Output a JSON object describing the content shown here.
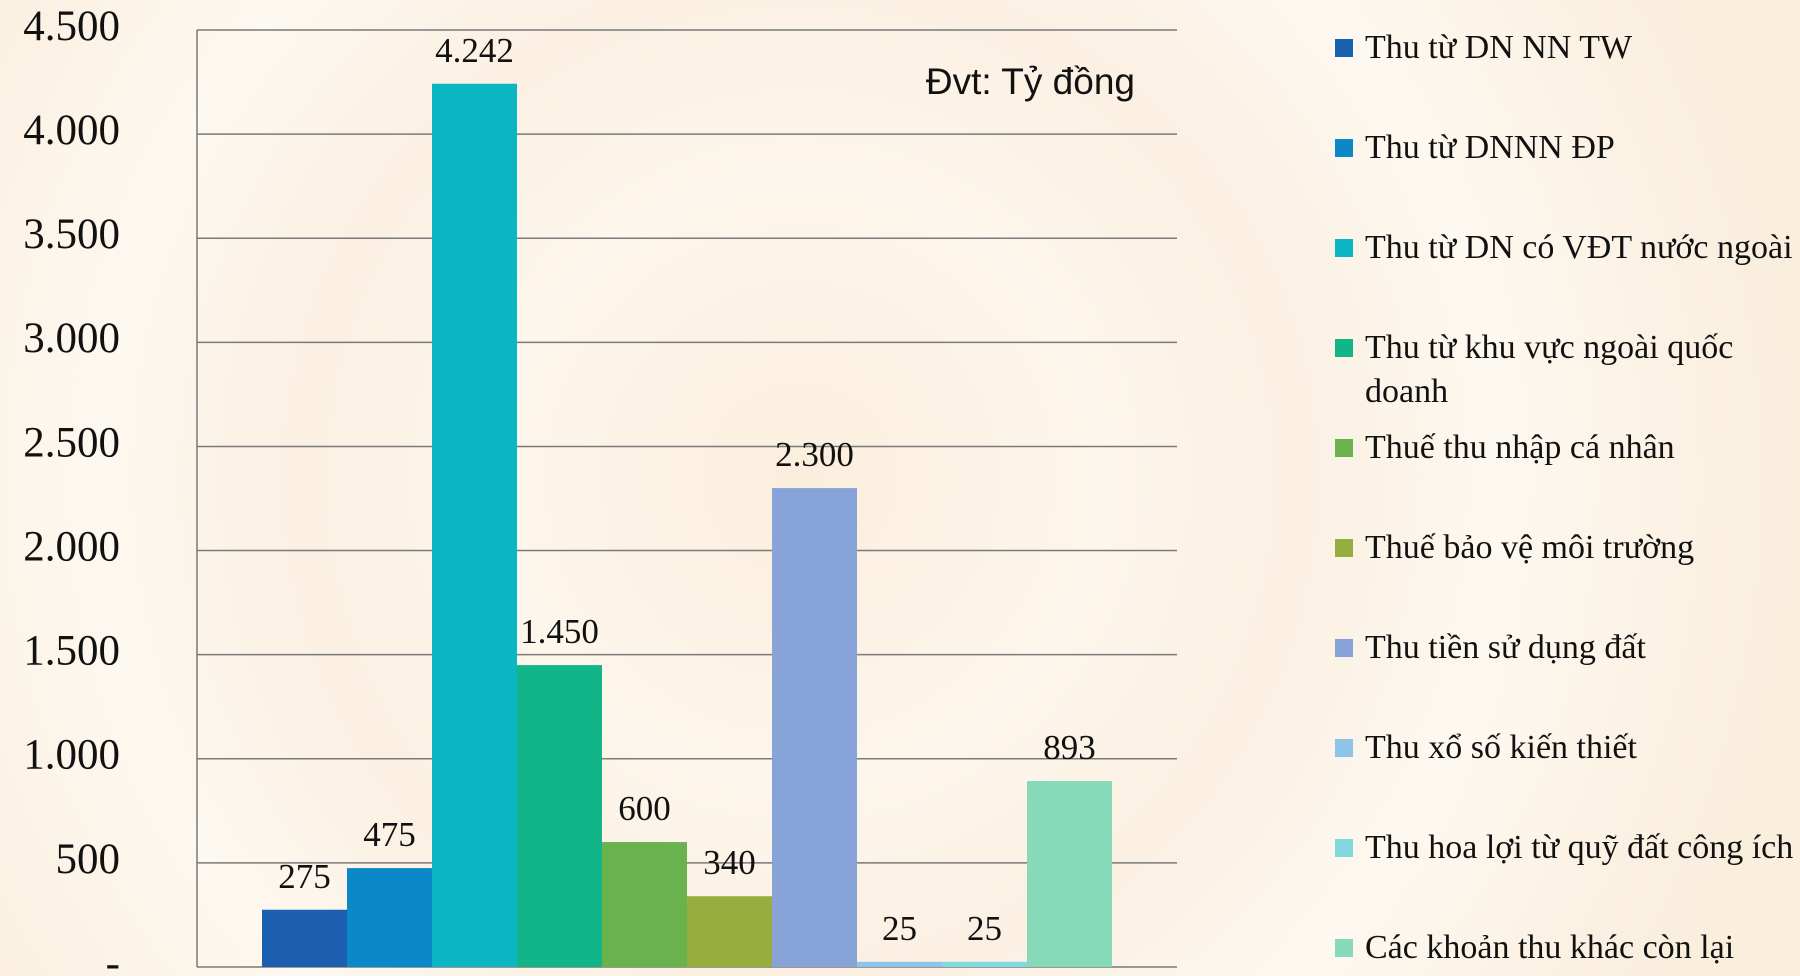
{
  "chart_data": {
    "type": "bar",
    "annotation": "Đvt: Tỷ đồng",
    "series": [
      {
        "name": "Thu từ DN NN TW",
        "color": "#1c5fae",
        "values": [
          275
        ]
      },
      {
        "name": "Thu từ DNNN ĐP",
        "color": "#0a88c8",
        "values": [
          475
        ]
      },
      {
        "name": "Thu từ DN có VĐT nước ngoài",
        "color": "#0ab6c1",
        "values": [
          4242
        ],
        "value_labels": [
          "4.242"
        ]
      },
      {
        "name": "Thu từ khu vực ngoài quốc doanh",
        "color": "#12b587",
        "values": [
          1450
        ],
        "value_labels": [
          "1.450"
        ]
      },
      {
        "name": "Thuế thu nhập cá nhân",
        "color": "#6ab24e",
        "values": [
          600
        ]
      },
      {
        "name": "Thuế bảo vệ môi trường",
        "color": "#97ad3d",
        "values": [
          340
        ]
      },
      {
        "name": "Thu tiền sử dụng đất",
        "color": "#88a3d7",
        "values": [
          2300
        ],
        "value_labels": [
          "2.300"
        ]
      },
      {
        "name": "Thu xổ số kiến thiết",
        "color": "#8ec4e8",
        "values": [
          25
        ]
      },
      {
        "name": "Thu hoa lợi từ quỹ đất công ích",
        "color": "#80d8e0",
        "values": [
          25
        ]
      },
      {
        "name": "Các khoản thu khác còn lại",
        "color": "#86d9b9",
        "values": [
          893
        ]
      }
    ],
    "ylim": [
      0,
      4500
    ],
    "yticks": [
      {
        "value": 0,
        "label": "-"
      },
      500,
      {
        "value": 1000,
        "label": "1.000"
      },
      {
        "value": 1500,
        "label": "1.500"
      },
      {
        "value": 2000,
        "label": "2.000"
      },
      {
        "value": 2500,
        "label": "2.500"
      },
      {
        "value": 3000,
        "label": "3.000"
      },
      {
        "value": 3500,
        "label": "3.500"
      },
      {
        "value": 4000,
        "label": "4.000"
      },
      {
        "value": 4500,
        "label": "4.500"
      }
    ],
    "grid": true,
    "legend": "right"
  }
}
